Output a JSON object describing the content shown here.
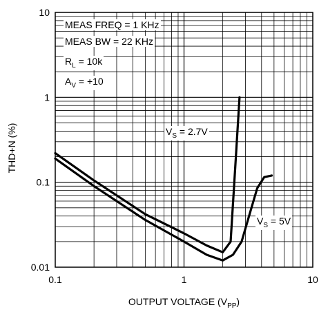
{
  "chart_data": {
    "type": "line",
    "x_scale": "log",
    "y_scale": "log",
    "xlim": [
      0.1,
      10
    ],
    "ylim": [
      0.01,
      10
    ],
    "xlabel": "OUTPUT VOLTAGE",
    "xlabel_sub": "PP",
    "ylabel": "THD+N (%)",
    "x_ticks": [
      "0.1",
      "1",
      "10"
    ],
    "y_ticks": [
      "10",
      "1",
      "0.1",
      "0.01"
    ],
    "grid": true,
    "legend_box": {
      "line1": "MEAS FREQ = 1 KHz",
      "line2": "MEAS BW = 22 KHz",
      "line3_main": "R",
      "line3_sub": "L",
      "line3_tail": " = 10k",
      "line4_main": "A",
      "line4_sub": "V",
      "line4_tail": " = +10"
    },
    "series": [
      {
        "name": "VS = 2.7V",
        "label_main": "V",
        "label_sub": "S",
        "label_tail": " = 2.7V",
        "points": [
          [
            0.1,
            0.22
          ],
          [
            0.2,
            0.105
          ],
          [
            0.5,
            0.042
          ],
          [
            1.0,
            0.025
          ],
          [
            1.5,
            0.018
          ],
          [
            2.0,
            0.015
          ],
          [
            2.3,
            0.02
          ],
          [
            2.5,
            0.15
          ],
          [
            2.7,
            1.0
          ]
        ]
      },
      {
        "name": "VS = 5V",
        "label_main": "V",
        "label_sub": "S",
        "label_tail": " = 5V",
        "points": [
          [
            0.1,
            0.19
          ],
          [
            0.2,
            0.09
          ],
          [
            0.5,
            0.036
          ],
          [
            1.0,
            0.02
          ],
          [
            1.5,
            0.014
          ],
          [
            2.0,
            0.012
          ],
          [
            2.4,
            0.014
          ],
          [
            2.8,
            0.02
          ],
          [
            3.2,
            0.04
          ],
          [
            3.7,
            0.085
          ],
          [
            4.2,
            0.115
          ],
          [
            4.8,
            0.12
          ]
        ]
      }
    ]
  }
}
